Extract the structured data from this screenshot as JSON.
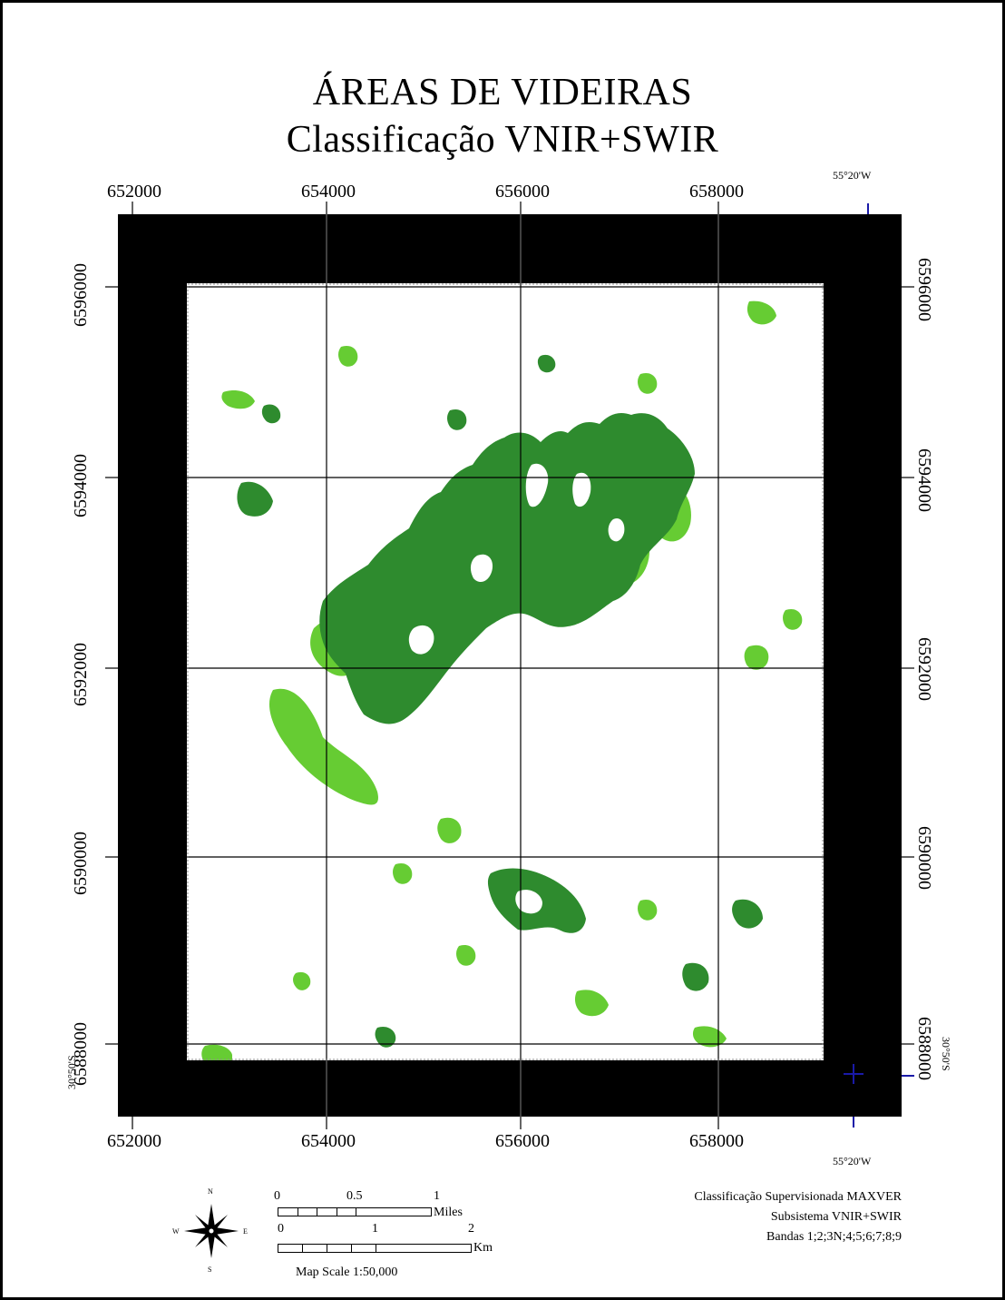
{
  "title": {
    "line1": "ÁREAS DE VIDEIRAS",
    "line2": "Classificação VNIR+SWIR"
  },
  "coords": {
    "top": [
      "652000",
      "654000",
      "656000",
      "658000"
    ],
    "bottom": [
      "652000",
      "654000",
      "656000",
      "658000"
    ],
    "left": [
      "6596000",
      "6594000",
      "6592000",
      "6590000",
      "6588000"
    ],
    "right": [
      "6596000",
      "6594000",
      "6592000",
      "6590000",
      "6588000"
    ],
    "lon_top": "55°20'W",
    "lon_bottom": "55°20'W",
    "lat_left": "30°50'S",
    "lat_right": "30°50'S"
  },
  "map": {
    "class_colors": {
      "dark": "#2e8b2e",
      "light": "#66cc33",
      "frame": "#000000",
      "grid": "#000000",
      "marker": "#1a1aa8"
    }
  },
  "scale": {
    "miles_labels": [
      "0",
      "0.5",
      "1"
    ],
    "miles_unit": "Miles",
    "km_labels": [
      "0",
      "1",
      "2"
    ],
    "km_unit": "Km",
    "map_scale": "Map Scale 1:50,000"
  },
  "compass": {
    "n": "N",
    "s": "S",
    "e": "E",
    "w": "W"
  },
  "info": {
    "line1": "Classificação Supervisionada MAXVER",
    "line2": "Subsistema VNIR+SWIR",
    "line3": "Bandas 1;2;3N;4;5;6;7;8;9"
  }
}
